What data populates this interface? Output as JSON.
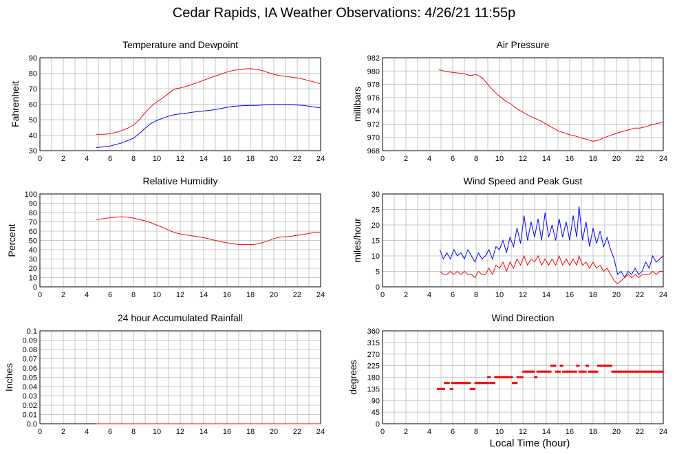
{
  "title": "Cedar Rapids, IA Weather Observations: 4/26/21 11:55p",
  "xlabel": "Local Time (hour)",
  "colors": {
    "red": "#ff0000",
    "blue": "#0000ff",
    "grid": "#b8b8b8"
  },
  "chart_data": [
    {
      "type": "line",
      "title": "Temperature and Dewpoint",
      "ylabel": "Fahrenheit",
      "xlim": [
        0,
        24
      ],
      "ylim": [
        30,
        90
      ],
      "xticks": [
        0,
        2,
        4,
        6,
        8,
        10,
        12,
        14,
        16,
        18,
        20,
        22,
        24
      ],
      "yticks": [
        30,
        40,
        50,
        60,
        70,
        80,
        90
      ],
      "series": [
        {
          "color": "#ff0000",
          "x": [
            4.8,
            5.5,
            6.0,
            6.5,
            7.0,
            7.5,
            8.0,
            8.5,
            9.0,
            9.5,
            10.0,
            10.5,
            11.0,
            11.5,
            12.0,
            12.5,
            13.0,
            13.5,
            14.0,
            14.5,
            15.0,
            15.5,
            16.0,
            16.5,
            17.0,
            17.5,
            18.0,
            18.5,
            19.0,
            19.5,
            20.0,
            20.5,
            21.0,
            21.5,
            22.0,
            22.5,
            23.0,
            23.5,
            24.0
          ],
          "y": [
            40.5,
            40.6,
            41.0,
            41.8,
            43.0,
            44.5,
            46.5,
            50.0,
            54.5,
            58.5,
            61.5,
            64.0,
            67.0,
            69.8,
            70.5,
            71.5,
            72.8,
            74.0,
            75.5,
            76.8,
            78.2,
            79.5,
            80.8,
            81.8,
            82.4,
            82.8,
            83.0,
            82.5,
            81.8,
            80.5,
            79.2,
            78.5,
            78.0,
            77.5,
            77.0,
            76.2,
            75.2,
            74.2,
            73.2
          ]
        },
        {
          "color": "#0000ff",
          "x": [
            4.8,
            5.5,
            6.0,
            6.5,
            7.0,
            7.5,
            8.0,
            8.5,
            9.0,
            9.5,
            10.0,
            10.5,
            11.0,
            11.5,
            12.0,
            12.5,
            13.0,
            13.5,
            14.0,
            14.5,
            15.0,
            15.5,
            16.0,
            16.5,
            17.0,
            17.5,
            18.0,
            18.5,
            19.0,
            19.5,
            20.0,
            20.5,
            21.0,
            21.5,
            22.0,
            22.5,
            23.0,
            23.5,
            24.0
          ],
          "y": [
            32.0,
            32.5,
            33.0,
            34.0,
            35.0,
            36.5,
            38.0,
            41.0,
            44.5,
            47.5,
            49.5,
            51.0,
            52.3,
            53.2,
            53.8,
            54.2,
            54.8,
            55.2,
            55.6,
            56.0,
            56.6,
            57.2,
            58.0,
            58.6,
            58.9,
            59.1,
            59.2,
            59.2,
            59.4,
            59.6,
            59.8,
            59.8,
            59.7,
            59.6,
            59.4,
            59.2,
            58.7,
            58.2,
            57.6
          ]
        }
      ]
    },
    {
      "type": "line",
      "title": "Air Pressure",
      "ylabel": "millibars",
      "xlim": [
        0,
        24
      ],
      "ylim": [
        968,
        982
      ],
      "xticks": [
        0,
        2,
        4,
        6,
        8,
        10,
        12,
        14,
        16,
        18,
        20,
        22,
        24
      ],
      "yticks": [
        968,
        970,
        972,
        974,
        976,
        978,
        980,
        982
      ],
      "series": [
        {
          "color": "#ff0000",
          "x": [
            4.8,
            5.5,
            6.0,
            6.5,
            7.0,
            7.5,
            8.0,
            8.5,
            9.0,
            9.5,
            10.0,
            10.5,
            11.0,
            11.5,
            12.0,
            12.5,
            13.0,
            13.5,
            14.0,
            14.5,
            15.0,
            15.5,
            16.0,
            16.5,
            17.0,
            17.5,
            18.0,
            18.5,
            19.0,
            19.5,
            20.0,
            20.5,
            21.0,
            21.5,
            22.0,
            22.5,
            23.0,
            23.5,
            24.0
          ],
          "y": [
            980.2,
            979.9,
            979.8,
            979.7,
            979.6,
            979.3,
            979.5,
            979.0,
            978.0,
            977.0,
            976.2,
            975.5,
            975.0,
            974.3,
            973.8,
            973.3,
            972.9,
            972.5,
            972.0,
            971.5,
            971.0,
            970.7,
            970.4,
            970.2,
            969.9,
            969.7,
            969.4,
            969.6,
            970.0,
            970.3,
            970.6,
            970.9,
            971.1,
            971.4,
            971.4,
            971.6,
            971.9,
            972.1,
            972.3
          ]
        }
      ]
    },
    {
      "type": "line",
      "title": "Relative Humidity",
      "ylabel": "Percent",
      "xlim": [
        0,
        24
      ],
      "ylim": [
        0,
        100
      ],
      "xticks": [
        0,
        2,
        4,
        6,
        8,
        10,
        12,
        14,
        16,
        18,
        20,
        22,
        24
      ],
      "yticks": [
        0,
        10,
        20,
        30,
        40,
        50,
        60,
        70,
        80,
        90,
        100
      ],
      "series": [
        {
          "color": "#ff0000",
          "x": [
            4.8,
            5.5,
            6.0,
            6.5,
            7.0,
            7.5,
            8.0,
            8.5,
            9.0,
            9.5,
            10.0,
            10.5,
            11.0,
            11.5,
            12.0,
            12.5,
            13.0,
            13.5,
            14.0,
            14.5,
            15.0,
            15.5,
            16.0,
            16.5,
            17.0,
            17.5,
            18.0,
            18.5,
            19.0,
            19.5,
            20.0,
            20.5,
            21.0,
            21.5,
            22.0,
            22.5,
            23.0,
            23.5,
            24.0
          ],
          "y": [
            72.5,
            73.5,
            74.5,
            75.0,
            75.5,
            75.0,
            74.0,
            72.5,
            71.0,
            69.0,
            66.5,
            64.0,
            61.0,
            58.5,
            57.0,
            56.0,
            55.0,
            54.0,
            53.0,
            51.5,
            50.0,
            48.5,
            47.5,
            46.5,
            45.5,
            45.5,
            45.5,
            46.0,
            47.5,
            49.5,
            52.0,
            53.5,
            54.0,
            54.5,
            55.5,
            56.5,
            57.5,
            58.5,
            59.0
          ]
        }
      ]
    },
    {
      "type": "line",
      "title": "Wind Speed and Peak Gust",
      "ylabel": "miles/hour",
      "xlim": [
        0,
        24
      ],
      "ylim": [
        0,
        30
      ],
      "xticks": [
        0,
        2,
        4,
        6,
        8,
        10,
        12,
        14,
        16,
        18,
        20,
        22,
        24
      ],
      "yticks": [
        0,
        5,
        10,
        15,
        20,
        25,
        30
      ],
      "series": [
        {
          "color": "#0000ff",
          "x": [
            4.9,
            5.2,
            5.5,
            5.8,
            6.1,
            6.4,
            6.7,
            7.0,
            7.3,
            7.6,
            7.9,
            8.2,
            8.5,
            8.8,
            9.1,
            9.4,
            9.7,
            10.0,
            10.3,
            10.6,
            10.9,
            11.2,
            11.5,
            11.8,
            12.1,
            12.4,
            12.7,
            13.0,
            13.3,
            13.6,
            13.9,
            14.2,
            14.5,
            14.8,
            15.1,
            15.4,
            15.7,
            16.0,
            16.3,
            16.6,
            16.8,
            17.1,
            17.4,
            17.7,
            18.0,
            18.3,
            18.6,
            18.9,
            19.2,
            19.5,
            19.8,
            20.1,
            20.4,
            20.7,
            21.0,
            21.3,
            21.6,
            21.9,
            22.2,
            22.5,
            22.8,
            23.1,
            23.4,
            23.7,
            24.0
          ],
          "y": [
            12,
            9,
            11,
            9,
            12,
            10,
            11,
            9,
            12,
            10,
            8,
            11,
            9,
            10,
            12,
            9,
            13,
            12,
            15,
            11,
            16,
            13,
            19,
            14,
            23,
            15,
            21,
            16,
            22,
            15,
            24,
            16,
            20,
            15,
            22,
            16,
            21,
            15,
            23,
            16,
            26,
            15,
            21,
            13,
            19,
            14,
            18,
            13,
            16,
            12,
            9,
            4,
            5,
            3,
            5,
            4,
            6,
            4,
            5,
            8,
            6,
            10,
            8,
            9,
            10
          ]
        },
        {
          "color": "#ff0000",
          "x": [
            4.9,
            5.2,
            5.5,
            5.8,
            6.1,
            6.4,
            6.7,
            7.0,
            7.3,
            7.6,
            7.9,
            8.2,
            8.5,
            8.8,
            9.1,
            9.4,
            9.7,
            10.0,
            10.3,
            10.6,
            10.9,
            11.2,
            11.5,
            11.8,
            12.1,
            12.4,
            12.7,
            13.0,
            13.3,
            13.6,
            13.9,
            14.2,
            14.5,
            14.8,
            15.1,
            15.4,
            15.7,
            16.0,
            16.3,
            16.6,
            16.8,
            17.1,
            17.4,
            17.7,
            18.0,
            18.3,
            18.6,
            18.9,
            19.2,
            19.5,
            19.8,
            20.1,
            20.4,
            20.7,
            21.0,
            21.3,
            21.6,
            21.9,
            22.2,
            22.5,
            22.8,
            23.1,
            23.4,
            23.7,
            24.0
          ],
          "y": [
            5,
            4,
            4,
            5,
            4,
            5,
            4,
            5,
            4,
            4,
            3,
            5,
            4,
            4,
            6,
            4,
            7,
            6,
            8,
            5,
            8,
            6,
            9,
            7,
            10,
            7,
            9,
            8,
            10,
            7,
            9,
            7,
            9,
            7,
            10,
            7,
            9,
            7,
            9,
            7,
            10,
            7,
            8,
            6,
            8,
            6,
            7,
            5,
            6,
            4,
            2,
            1,
            2,
            3,
            4,
            3,
            4,
            3,
            4,
            4,
            4,
            5,
            4,
            5,
            5
          ]
        }
      ]
    },
    {
      "type": "line",
      "title": "24 hour Accumulated Rainfall",
      "ylabel": "Inches",
      "xlim": [
        0,
        24
      ],
      "ylim": [
        0,
        0.1
      ],
      "xticks": [
        0,
        2,
        4,
        6,
        8,
        10,
        12,
        14,
        16,
        18,
        20,
        22,
        24
      ],
      "yticks": [
        "0.0",
        "0.01",
        "0.02",
        "0.03",
        "0.04",
        "0.05",
        "0.06",
        "0.07",
        "0.08",
        "0.09",
        "0.1"
      ],
      "series": [
        {
          "color": "#ff0000",
          "x": [
            4.8,
            24.0
          ],
          "y": [
            0,
            0
          ]
        }
      ]
    },
    {
      "type": "scatter",
      "title": "Wind Direction",
      "ylabel": "degrees",
      "xlim": [
        0,
        24
      ],
      "ylim": [
        0,
        360
      ],
      "xticks": [
        0,
        2,
        4,
        6,
        8,
        10,
        12,
        14,
        16,
        18,
        20,
        22,
        24
      ],
      "yticks": [
        0,
        45,
        90,
        135,
        180,
        225,
        270,
        315,
        360
      ],
      "series": [
        {
          "color": "#ff0000",
          "x": [
            4.8,
            5.0,
            5.2,
            5.4,
            5.6,
            5.9,
            6.0,
            6.2,
            6.4,
            6.6,
            6.8,
            7.0,
            7.2,
            7.4,
            7.6,
            7.8,
            8.0,
            8.2,
            8.4,
            8.6,
            8.8,
            9.0,
            9.1,
            9.3,
            9.5,
            9.7,
            9.9,
            10.1,
            10.3,
            10.5,
            10.7,
            11.0,
            11.2,
            11.4,
            11.6,
            11.9,
            12.1,
            12.3,
            12.5,
            12.7,
            12.9,
            13.1,
            13.3,
            13.5,
            13.7,
            13.9,
            14.1,
            14.3,
            14.5,
            14.7,
            14.9,
            15.1,
            15.3,
            15.5,
            15.7,
            15.9,
            16.1,
            16.3,
            16.5,
            16.7,
            16.9,
            17.1,
            17.3,
            17.5,
            17.7,
            17.9,
            18.1,
            18.3,
            18.5,
            18.7,
            18.9,
            19.1,
            19.3,
            19.5,
            19.7,
            19.9,
            20.1,
            20.3,
            20.5,
            20.7,
            20.9,
            21.1,
            21.3,
            21.5,
            21.7,
            21.9,
            22.1,
            22.3,
            22.5,
            22.7,
            22.9,
            23.1,
            23.3,
            23.5,
            23.7,
            23.9
          ],
          "y": [
            135,
            135,
            135,
            158,
            158,
            135,
            158,
            158,
            158,
            158,
            158,
            158,
            158,
            158,
            135,
            135,
            158,
            158,
            158,
            158,
            158,
            158,
            180,
            158,
            158,
            180,
            180,
            180,
            180,
            180,
            180,
            180,
            158,
            158,
            180,
            180,
            202,
            202,
            202,
            202,
            202,
            180,
            202,
            202,
            202,
            202,
            202,
            202,
            225,
            225,
            202,
            202,
            225,
            202,
            202,
            202,
            202,
            202,
            202,
            225,
            202,
            202,
            202,
            225,
            202,
            202,
            202,
            202,
            225,
            225,
            225,
            225,
            225,
            225,
            202,
            202,
            202,
            202,
            202,
            202,
            202,
            202,
            202,
            202,
            202,
            202,
            202,
            202,
            202,
            202,
            202,
            202,
            202,
            202,
            202,
            202
          ]
        }
      ]
    }
  ]
}
